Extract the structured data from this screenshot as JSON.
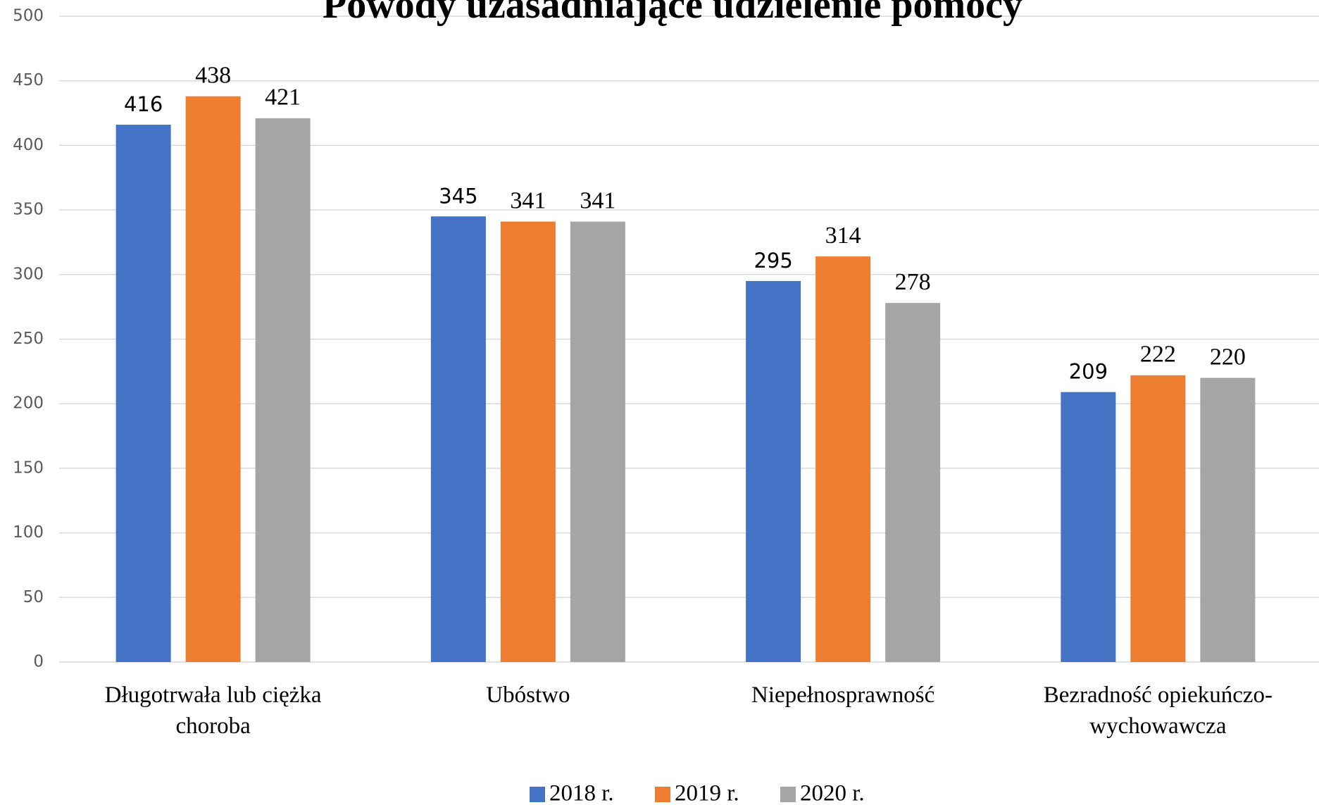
{
  "chart_data": {
    "type": "bar",
    "title": "Powody uzasadniające udzielenie pomocy",
    "categories": [
      "Długotrwała lub ciężka choroba",
      "Ubóstwo",
      "Niepełnosprawność",
      "Bezradność opiekuńczo-wychowawcza"
    ],
    "series": [
      {
        "name": "2018 r.",
        "color": "#4472c4",
        "values": [
          416,
          345,
          295,
          209
        ]
      },
      {
        "name": "2019 r.",
        "color": "#ed7d31",
        "values": [
          438,
          341,
          314,
          222
        ]
      },
      {
        "name": "2020 r.",
        "color": "#a5a5a5",
        "values": [
          421,
          341,
          278,
          220
        ]
      }
    ],
    "ylim": [
      0,
      500
    ],
    "yticks": [
      0,
      50,
      100,
      150,
      200,
      250,
      300,
      350,
      400,
      450,
      500
    ],
    "grid": true,
    "legend": "bottom"
  }
}
